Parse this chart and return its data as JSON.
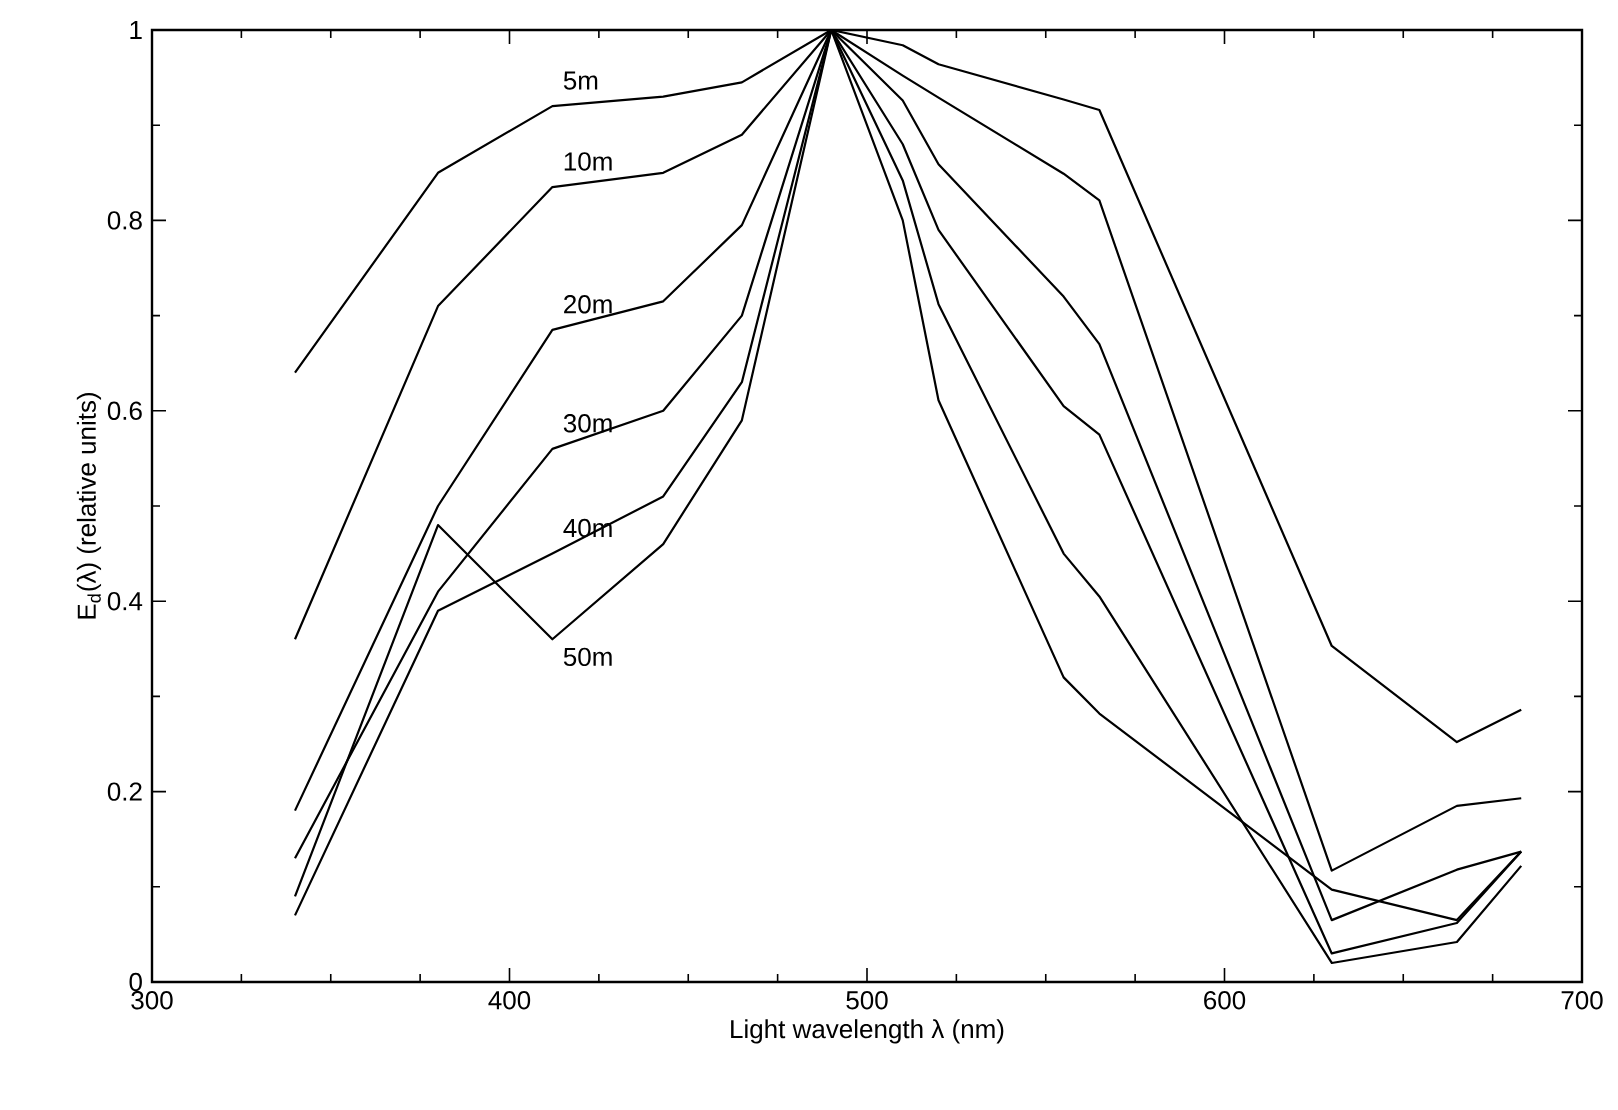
{
  "chart_data": {
    "type": "line",
    "xlabel": "Light wavelength λ (nm)",
    "ylabel": "E$_{d}$(λ)  (relative units)",
    "x": [
      340,
      380,
      412,
      443,
      465,
      490,
      510,
      520,
      555,
      565,
      630,
      665,
      683
    ],
    "xlim": [
      300,
      700
    ],
    "ylim": [
      0,
      1
    ],
    "xticks": [
      300,
      400,
      500,
      600,
      700
    ],
    "yticks": [
      0,
      0.2,
      0.4,
      0.6,
      0.8,
      1
    ],
    "marker": "none",
    "line_style": "solid",
    "series": [
      {
        "name": "5m",
        "color": "#000000",
        "values": [
          0.64,
          0.85,
          0.92,
          0.93,
          0.945,
          1.0,
          0.984,
          0.964,
          0.927,
          0.916,
          0.353,
          0.252,
          0.286
        ]
      },
      {
        "name": "10m",
        "color": "#000000",
        "values": [
          0.36,
          0.71,
          0.835,
          0.85,
          0.89,
          1.0,
          0.952,
          0.929,
          0.849,
          0.821,
          0.117,
          0.185,
          0.193
        ]
      },
      {
        "name": "20m",
        "color": "#000000",
        "values": [
          0.18,
          0.5,
          0.685,
          0.715,
          0.795,
          1.0,
          0.926,
          0.859,
          0.72,
          0.67,
          0.065,
          0.118,
          0.137
        ]
      },
      {
        "name": "30m",
        "color": "#000000",
        "values": [
          0.13,
          0.41,
          0.56,
          0.6,
          0.7,
          1.0,
          0.88,
          0.79,
          0.605,
          0.575,
          0.03,
          0.062,
          0.137
        ]
      },
      {
        "name": "40m",
        "color": "#000000",
        "values": [
          0.07,
          0.39,
          0.45,
          0.51,
          0.63,
          1.0,
          0.842,
          0.712,
          0.45,
          0.405,
          0.02,
          0.042,
          0.122
        ]
      },
      {
        "name": "50m",
        "color": "#000000",
        "values": [
          0.09,
          0.48,
          0.36,
          0.46,
          0.59,
          1.0,
          0.8,
          0.611,
          0.32,
          0.282,
          0.097,
          0.065,
          0.137
        ]
      }
    ]
  }
}
